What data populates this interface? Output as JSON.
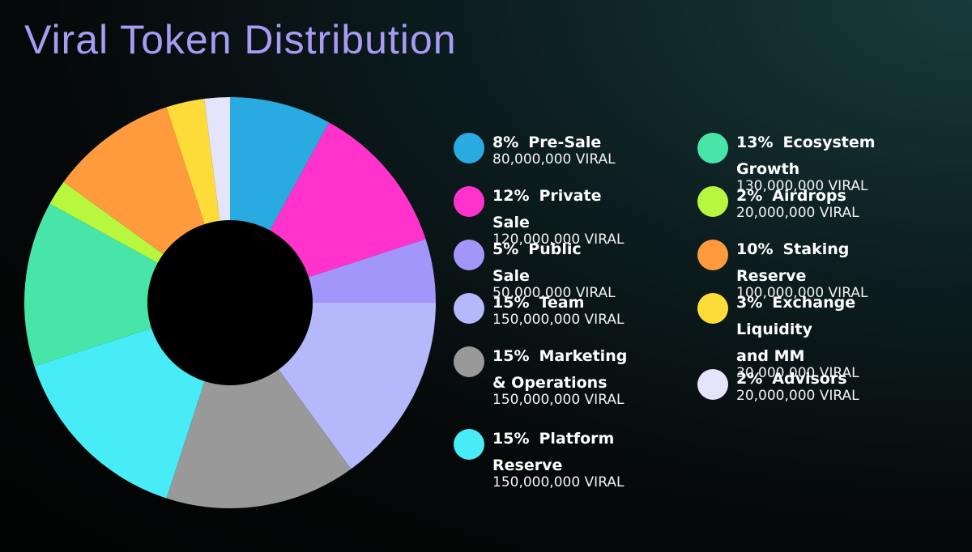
{
  "title": "Viral Token Distribution",
  "chart_data": {
    "type": "pie",
    "donut": true,
    "unit": "VIRAL",
    "slices": [
      {
        "percent_label": "8%",
        "name": "Pre-Sale",
        "value": 8,
        "amount": "80,000,000 VIRAL",
        "color": "#29abe2"
      },
      {
        "percent_label": "12%",
        "name": "Private Sale",
        "value": 12,
        "amount": "120,000,000 VIRAL",
        "color": "#ff33cc"
      },
      {
        "percent_label": "5%",
        "name": "Public Sale",
        "value": 5,
        "amount": "50,000,000 VIRAL",
        "color": "#a296fb"
      },
      {
        "percent_label": "15%",
        "name": "Team",
        "value": 15,
        "amount": "150,000,000 VIRAL",
        "color": "#b5b9fc"
      },
      {
        "percent_label": "15%",
        "name": "Marketing\n& Operations",
        "value": 15,
        "amount": "150,000,000 VIRAL",
        "color": "#999999"
      },
      {
        "percent_label": "15%",
        "name": "Platform Reserve",
        "value": 15,
        "amount": "150,000,000 VIRAL",
        "color": "#47ecf6"
      },
      {
        "percent_label": "13%",
        "name": "Ecosystem Growth",
        "value": 13,
        "amount": "130,000,000 VIRAL",
        "color": "#47e6a8"
      },
      {
        "percent_label": "2%",
        "name": "Airdrops",
        "value": 2,
        "amount": "20,000,000 VIRAL",
        "color": "#b7f73e"
      },
      {
        "percent_label": "10%",
        "name": "Staking Reserve",
        "value": 10,
        "amount": "100,000,000 VIRAL",
        "color": "#ff9a3d"
      },
      {
        "percent_label": "3%",
        "name": "Exchange Liquidity\nand MM",
        "value": 3,
        "amount": "30,000,000 VIRAL",
        "color": "#fddc3a"
      },
      {
        "percent_label": "2%",
        "name": "Advisors",
        "value": 2,
        "amount": "20,000,000 VIRAL",
        "color": "#e4e4fb"
      }
    ]
  }
}
